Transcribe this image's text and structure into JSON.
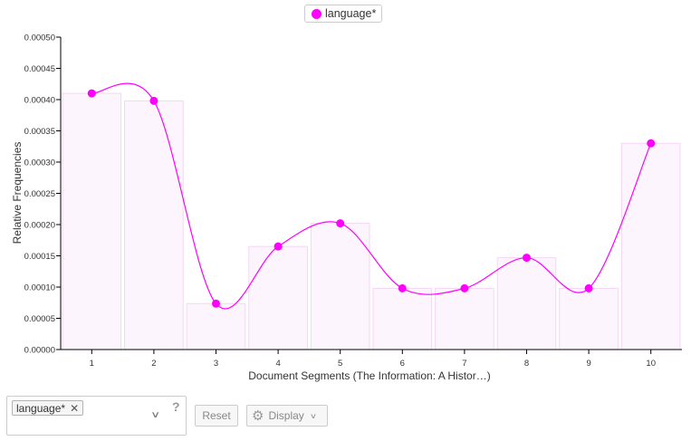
{
  "legend": {
    "label": "language*",
    "color": "#ff00ff"
  },
  "chart_data": {
    "type": "line",
    "xlabel": "Document Segments (The Information: A Histor…)",
    "ylabel": "Relative Frequencies",
    "categories": [
      "1",
      "2",
      "3",
      "4",
      "5",
      "6",
      "7",
      "8",
      "9",
      "10"
    ],
    "series": [
      {
        "name": "language*",
        "color": "#ff00ff",
        "values": [
          0.00041,
          0.000398,
          7.35e-05,
          0.000165,
          0.000202,
          9.8e-05,
          9.8e-05,
          0.000147,
          9.8e-05,
          0.00033
        ]
      }
    ],
    "ylim": [
      0,
      0.0005
    ],
    "yticks": [
      "0.00000",
      "0.00005",
      "0.00010",
      "0.00015",
      "0.00020",
      "0.00025",
      "0.00030",
      "0.00035",
      "0.00040",
      "0.00045",
      "0.00050"
    ],
    "bar_fill": "#fdf5fd",
    "bar_stroke": "#f3d7f3"
  },
  "controls": {
    "term_tag": "language*",
    "remove_symbol": "✕",
    "chevron": "∨",
    "help": "?",
    "reset_label": "Reset",
    "display_label": "Display",
    "gear_symbol": "⚙",
    "display_chevron": "∨"
  }
}
